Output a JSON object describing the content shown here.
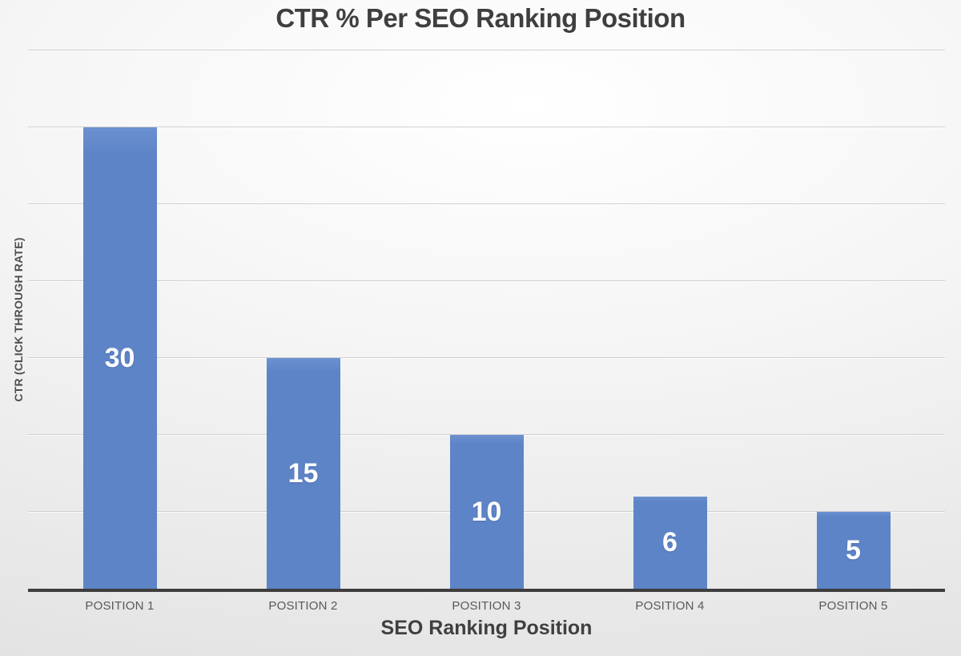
{
  "chart": {
    "title": "CTR % Per SEO Ranking Position",
    "x_axis_title": "SEO Ranking Position",
    "y_axis_title": "CTR (CLICK THROUGH RATE)"
  },
  "chart_data": {
    "type": "bar",
    "title": "CTR % Per SEO Ranking Position",
    "categories": [
      "POSITION 1",
      "POSITION 2",
      "POSITION 3",
      "POSITION 4",
      "POSITION 5"
    ],
    "values": [
      30,
      15,
      10,
      6,
      5
    ],
    "data_labels": [
      "30",
      "15",
      "10",
      "6",
      "5"
    ],
    "data_label_position": "center-inside",
    "xlabel": "SEO Ranking Position",
    "ylabel": "CTR (CLICK THROUGH RATE)",
    "ylim": [
      0,
      35
    ],
    "grid_step": 5,
    "grid": "horizontal-only",
    "y_tick_labels_visible": false,
    "legend": "none",
    "colors": {
      "bar": "#5d84c7",
      "bar_top_highlight": "#6c91d0",
      "data_label": "#ffffff",
      "gridline": "#cfcfcf",
      "axis_line": "#3d3d3d",
      "title_text": "#3f3f3f",
      "category_text": "#595959",
      "background_center": "#ffffff",
      "background_edge": "#e2e2e2"
    }
  }
}
